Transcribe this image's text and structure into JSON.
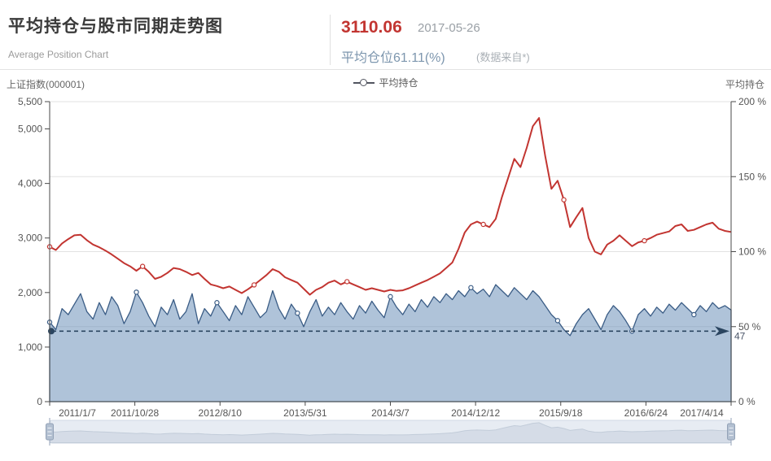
{
  "header": {
    "title": "平均持仓与股市同期走势图",
    "subtitle": "Average Position Chart",
    "index_value": "3110.06",
    "date": "2017-05-26",
    "position_label": "平均仓位61.11(%)",
    "source_note": "(数据来自*)"
  },
  "axes_names": {
    "left": "上证指数(000001)",
    "right": "平均持仓"
  },
  "legend": {
    "label": "平均持仓"
  },
  "theme": {
    "index_line_color": "#c23531",
    "area_stroke_color": "#3a5c85",
    "area_fill_color": "rgba(110,146,186,0.55)",
    "markline_color": "#2b4560",
    "grid_color": "#e2e2e2",
    "axis_line_color": "#4a4a4a",
    "axis_text_color": "#555555",
    "slider_track_fill": "#e7ecf3",
    "slider_track_border": "#d0d9e4",
    "slider_shadow_fill": "#d5dce7",
    "slider_shadow_stroke": "#c2ccd9",
    "slider_handle_fill": "#b3c0d1",
    "slider_handle_border": "#93a2b7"
  },
  "chart_data": {
    "type": "line",
    "x_labels": [
      "2011/1/7",
      "2011/10/28",
      "2012/8/10",
      "2013/5/31",
      "2014/3/7",
      "2014/12/12",
      "2015/9/18",
      "2016/6/24",
      "2017/4/14"
    ],
    "left_axis": {
      "max": 5500,
      "ticks": [
        {
          "v": 0,
          "label": "0"
        },
        {
          "v": 1000,
          "label": "1,000"
        },
        {
          "v": 2000,
          "label": "2,000"
        },
        {
          "v": 3000,
          "label": "3,000"
        },
        {
          "v": 4000,
          "label": "4,000"
        },
        {
          "v": 5000,
          "label": "5,000"
        },
        {
          "v": 5500,
          "label": "5,500"
        }
      ]
    },
    "right_axis": {
      "max": 200,
      "ticks": [
        {
          "v": 0,
          "label": "0 %"
        },
        {
          "v": 50,
          "label": "50 %"
        },
        {
          "v": 100,
          "label": "100 %"
        },
        {
          "v": 150,
          "label": "150 %"
        },
        {
          "v": 200,
          "label": "200 %"
        }
      ]
    },
    "series": [
      {
        "name": "上证指数(000001)",
        "axis": "left",
        "type": "line",
        "marker_indices": [
          0,
          15,
          33,
          48,
          70,
          83,
          96
        ],
        "values": [
          2840,
          2780,
          2900,
          2980,
          3050,
          3060,
          2960,
          2880,
          2830,
          2770,
          2700,
          2620,
          2540,
          2480,
          2400,
          2480,
          2380,
          2250,
          2290,
          2360,
          2450,
          2430,
          2380,
          2320,
          2360,
          2250,
          2150,
          2120,
          2080,
          2110,
          2050,
          1990,
          2060,
          2140,
          2230,
          2320,
          2430,
          2380,
          2280,
          2230,
          2180,
          2070,
          1960,
          2050,
          2100,
          2180,
          2220,
          2150,
          2200,
          2150,
          2100,
          2050,
          2080,
          2050,
          2020,
          2050,
          2030,
          2040,
          2080,
          2130,
          2180,
          2230,
          2290,
          2350,
          2450,
          2550,
          2800,
          3100,
          3250,
          3300,
          3250,
          3200,
          3350,
          3750,
          4100,
          4450,
          4300,
          4650,
          5050,
          5200,
          4500,
          3900,
          4050,
          3700,
          3200,
          3380,
          3550,
          3000,
          2750,
          2700,
          2880,
          2950,
          3050,
          2950,
          2850,
          2920,
          2950,
          3000,
          3060,
          3090,
          3120,
          3220,
          3250,
          3130,
          3150,
          3200,
          3250,
          3280,
          3170,
          3130,
          3110
        ]
      },
      {
        "name": "平均持仓",
        "axis": "right",
        "type": "area",
        "marker_indices": [
          0,
          14,
          27,
          40,
          55,
          68,
          82,
          94,
          104
        ],
        "values": [
          53,
          48,
          62,
          58,
          65,
          72,
          60,
          55,
          66,
          58,
          70,
          64,
          52,
          60,
          73,
          66,
          57,
          50,
          63,
          58,
          68,
          55,
          60,
          72,
          52,
          62,
          57,
          66,
          60,
          54,
          64,
          58,
          70,
          63,
          56,
          60,
          74,
          62,
          55,
          65,
          59,
          50,
          60,
          68,
          57,
          63,
          58,
          66,
          60,
          55,
          64,
          59,
          67,
          61,
          56,
          70,
          63,
          58,
          65,
          60,
          68,
          63,
          70,
          66,
          72,
          68,
          74,
          70,
          76,
          72,
          75,
          70,
          78,
          74,
          70,
          76,
          72,
          68,
          74,
          70,
          64,
          58,
          54,
          48,
          44,
          52,
          58,
          62,
          55,
          48,
          58,
          64,
          60,
          54,
          47,
          58,
          62,
          57,
          63,
          59,
          65,
          61,
          66,
          62,
          58,
          64,
          60,
          66,
          62,
          64,
          61.11
        ]
      }
    ],
    "markline": {
      "value": 47,
      "label": "47"
    }
  }
}
